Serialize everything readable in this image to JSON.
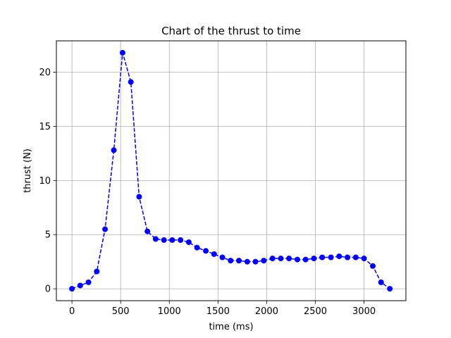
{
  "chart_data": {
    "type": "line",
    "title": "Chart of the thrust to time",
    "xlabel": "time (ms)",
    "ylabel": "thrust (N)",
    "xlim": [
      -160,
      3430
    ],
    "ylim": [
      -1.1,
      22.9
    ],
    "xticks": [
      0,
      500,
      1000,
      1500,
      2000,
      2500,
      3000
    ],
    "yticks": [
      0,
      5,
      10,
      15,
      20
    ],
    "xtick_labels": [
      "0",
      "500",
      "1000",
      "1500",
      "2000",
      "2500",
      "3000"
    ],
    "ytick_labels": [
      "0",
      "5",
      "10",
      "15",
      "20"
    ],
    "grid": true,
    "series": [
      {
        "color": "#0000ff",
        "line_style": "dashed",
        "marker": "circle",
        "x": [
          0,
          85,
          170,
          255,
          340,
          430,
          520,
          605,
          690,
          775,
          860,
          945,
          1030,
          1115,
          1200,
          1285,
          1375,
          1460,
          1545,
          1630,
          1715,
          1800,
          1885,
          1970,
          2060,
          2145,
          2230,
          2315,
          2400,
          2485,
          2570,
          2660,
          2745,
          2830,
          2915,
          3000,
          3090,
          3175,
          3265
        ],
        "y": [
          0.0,
          0.3,
          0.6,
          1.6,
          5.5,
          12.8,
          21.8,
          19.1,
          8.5,
          5.3,
          4.6,
          4.5,
          4.5,
          4.5,
          4.3,
          3.8,
          3.5,
          3.2,
          2.9,
          2.6,
          2.6,
          2.5,
          2.5,
          2.6,
          2.8,
          2.8,
          2.8,
          2.7,
          2.7,
          2.8,
          2.9,
          2.9,
          3.0,
          2.9,
          2.9,
          2.8,
          2.1,
          0.6,
          0.0
        ]
      }
    ]
  }
}
